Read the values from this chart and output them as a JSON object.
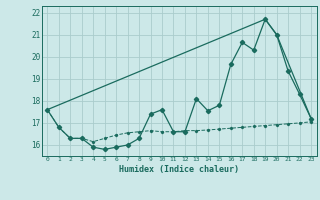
{
  "title": "",
  "xlabel": "Humidex (Indice chaleur)",
  "ylabel": "",
  "bg_color": "#cce8e8",
  "grid_color": "#aacccc",
  "line_color": "#1a6b5e",
  "xlim": [
    -0.5,
    23.5
  ],
  "ylim": [
    15.5,
    22.3
  ],
  "xticks": [
    0,
    1,
    2,
    3,
    4,
    5,
    6,
    7,
    8,
    9,
    10,
    11,
    12,
    13,
    14,
    15,
    16,
    17,
    18,
    19,
    20,
    21,
    22,
    23
  ],
  "yticks": [
    16,
    17,
    18,
    19,
    20,
    21,
    22
  ],
  "series1_x": [
    0,
    1,
    2,
    3,
    4,
    5,
    6,
    7,
    8,
    9,
    10,
    11,
    12,
    13,
    14,
    15,
    16,
    17,
    18,
    19,
    20,
    21,
    22,
    23
  ],
  "series1_y": [
    17.6,
    16.8,
    16.3,
    16.3,
    15.9,
    15.8,
    15.9,
    16.0,
    16.3,
    17.4,
    17.6,
    16.6,
    16.6,
    18.1,
    17.55,
    17.8,
    19.65,
    20.65,
    20.3,
    21.7,
    21.0,
    19.35,
    18.3,
    17.2
  ],
  "series2_x": [
    0,
    1,
    2,
    3,
    4,
    5,
    6,
    7,
    8,
    9,
    10,
    11,
    12,
    13,
    14,
    15,
    16,
    17,
    18,
    19,
    20,
    21,
    22,
    23
  ],
  "series2_y": [
    17.6,
    16.8,
    16.3,
    16.3,
    16.15,
    16.3,
    16.45,
    16.55,
    16.6,
    16.65,
    16.6,
    16.6,
    16.65,
    16.65,
    16.68,
    16.72,
    16.76,
    16.8,
    16.84,
    16.88,
    16.92,
    16.96,
    17.0,
    17.05
  ],
  "series3_x": [
    0,
    19,
    20,
    23
  ],
  "series3_y": [
    17.6,
    21.7,
    21.0,
    17.2
  ]
}
